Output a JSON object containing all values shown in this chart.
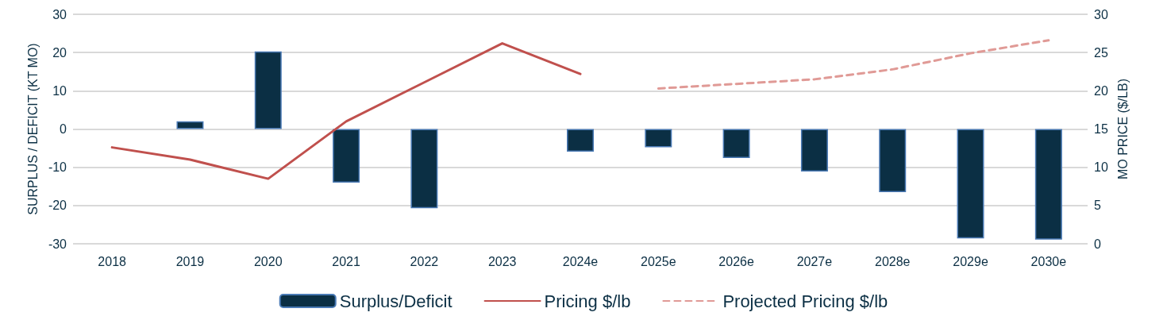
{
  "chart_data": {
    "type": "bar",
    "categories": [
      "2018",
      "2019",
      "2020",
      "2021",
      "2022",
      "2023",
      "2024e",
      "2025e",
      "2026e",
      "2027e",
      "2028e",
      "2029e",
      "2030e"
    ],
    "series": [
      {
        "name": "Surplus/Deficit",
        "color": "#0b2f44",
        "values": [
          null,
          2.0,
          20.3,
          -14.0,
          -20.7,
          null,
          -5.9,
          -4.8,
          -7.6,
          -11.1,
          -16.5,
          -28.6,
          -28.9
        ]
      },
      {
        "name": "Pricing $/lb",
        "type": "line",
        "axis": "y2",
        "color": "#c0504d",
        "line_style": "solid",
        "values": [
          12.6,
          11.0,
          8.5,
          16.0,
          21.1,
          26.2,
          22.2,
          null,
          null,
          null,
          null,
          null,
          null
        ]
      },
      {
        "name": "Projected Pricing $/lb",
        "type": "line",
        "axis": "y2",
        "color": "#e09a96",
        "line_style": "dashed",
        "values": [
          null,
          null,
          null,
          null,
          null,
          null,
          null,
          20.3,
          20.9,
          21.5,
          22.8,
          24.9,
          26.6
        ]
      }
    ],
    "ylabel": "SURPLUS / DEFICIT (KT MO)",
    "y2label": "MO PRICE ($/LB)",
    "ylim": [
      -30,
      30
    ],
    "yticks": [
      -30,
      -20,
      -10,
      0,
      10,
      20,
      30
    ],
    "y2lim": [
      0,
      30
    ],
    "y2ticks": [
      0,
      5,
      10,
      15,
      20,
      25,
      30
    ],
    "grid": "y",
    "legend": "bottom",
    "marker": "none"
  }
}
